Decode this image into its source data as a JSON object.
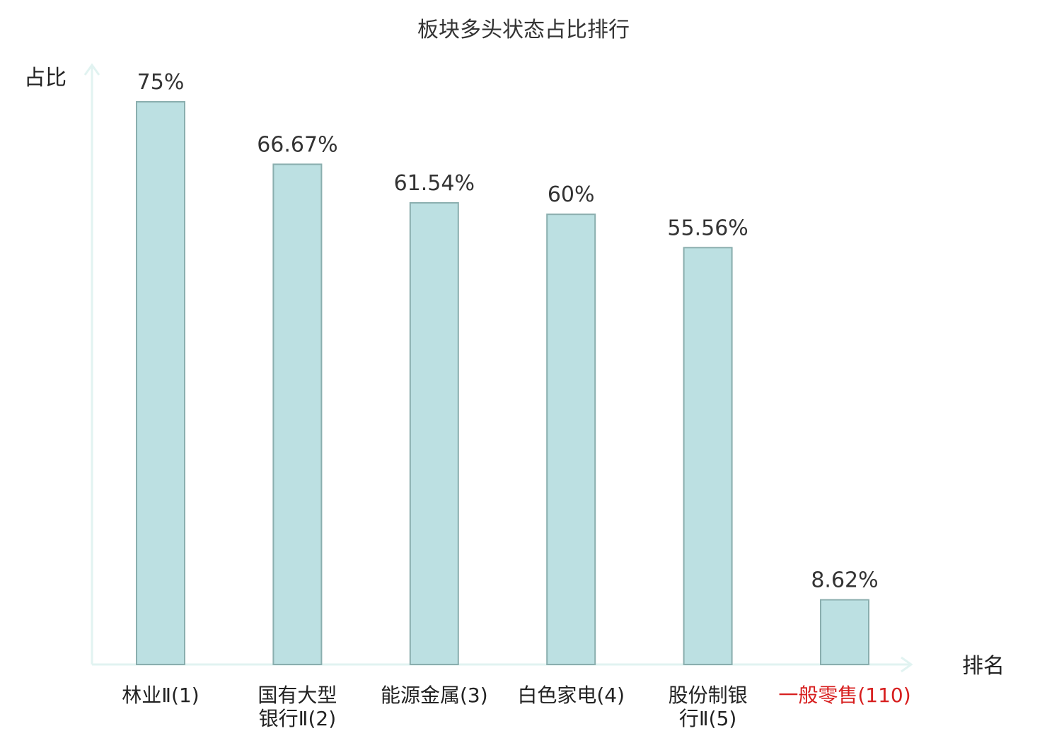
{
  "chart_data": {
    "type": "bar",
    "title": "板块多头状态占比排行",
    "ylabel": "占比",
    "xlabel": "排名",
    "categories": [
      [
        "林业Ⅱ(1)"
      ],
      [
        "国有大型",
        "银行Ⅱ(2)"
      ],
      [
        "能源金属(3)"
      ],
      [
        "白色家电(4)"
      ],
      [
        "股份制银",
        "行Ⅱ(5)"
      ],
      [
        "一般零售(110)"
      ]
    ],
    "values": [
      75,
      66.67,
      61.54,
      60,
      55.56,
      8.62
    ],
    "value_labels": [
      "75%",
      "66.67%",
      "61.54%",
      "60%",
      "55.56%",
      "8.62%"
    ],
    "highlight_index": 5,
    "ylim": [
      0,
      80
    ],
    "grid": false,
    "legend": "none",
    "colors": {
      "bar_fill": "#bce0e2",
      "bar_stroke": "#8aaeae",
      "axis": "#e1f3f1",
      "text": "#333333",
      "highlight_text": "#d71e1e"
    }
  }
}
